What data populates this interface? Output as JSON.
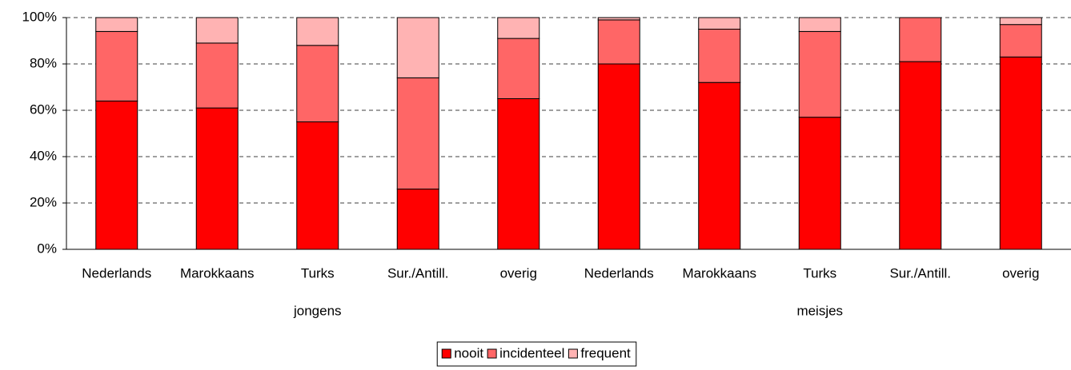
{
  "chart_data": {
    "type": "stacked_bar",
    "categories": [
      "Nederlands",
      "Marokkaans",
      "Turks",
      "Sur./Antill.",
      "overig",
      "Nederlands",
      "Marokkaans",
      "Turks",
      "Sur./Antill.",
      "overig"
    ],
    "groups": [
      "jongens",
      "meisjes"
    ],
    "series": [
      {
        "name": "nooit",
        "color": "#ff0000",
        "values": [
          64,
          61,
          55,
          26,
          65,
          80,
          72,
          57,
          81,
          83
        ]
      },
      {
        "name": "incidenteel",
        "color": "#ff6666",
        "values": [
          30,
          28,
          33,
          48,
          26,
          19,
          23,
          37,
          19,
          14
        ]
      },
      {
        "name": "frequent",
        "color": "#ffb3b3",
        "values": [
          6,
          11,
          12,
          26,
          9,
          1,
          5,
          6,
          0,
          3
        ]
      }
    ],
    "ylim": [
      0,
      100
    ],
    "yticks": [
      {
        "value": 0,
        "label": "0%"
      },
      {
        "value": 20,
        "label": "20%"
      },
      {
        "value": 40,
        "label": "40%"
      },
      {
        "value": 60,
        "label": "60%"
      },
      {
        "value": 80,
        "label": "80%"
      },
      {
        "value": 100,
        "label": "100%"
      }
    ],
    "grid": true,
    "legend": "bottom"
  }
}
